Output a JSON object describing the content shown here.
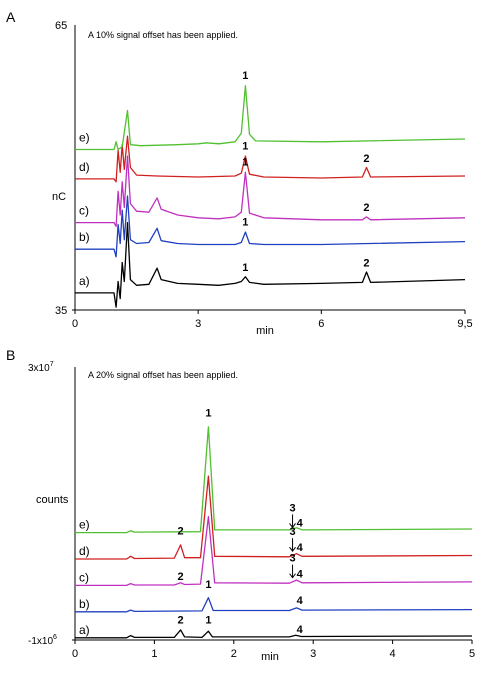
{
  "chart_data": [
    {
      "panel": "A",
      "type": "line",
      "note": "A 10% signal offset has been applied.",
      "ylabel": "nC",
      "xlabel": "min",
      "ylim": [
        35,
        65
      ],
      "xlim": [
        0,
        9.5
      ],
      "y_ticks": [
        "65",
        "35"
      ],
      "x_ticks": [
        {
          "value": 0,
          "label": "0"
        },
        {
          "value": 3,
          "label": "3"
        },
        {
          "value": 6,
          "label": "6"
        },
        {
          "value": 9.5,
          "label": "9,5"
        }
      ],
      "grid": false,
      "series": [
        {
          "name": "a)",
          "color": "#000000",
          "baseline": 36.8,
          "drift": 0.8,
          "points": [
            [
              0,
              36.8
            ],
            [
              0.95,
              36.8
            ],
            [
              1.0,
              35.3
            ],
            [
              1.05,
              38.0
            ],
            [
              1.1,
              36.2
            ],
            [
              1.15,
              40.0
            ],
            [
              1.2,
              38.0
            ],
            [
              1.28,
              44.2
            ],
            [
              1.35,
              38.2
            ],
            [
              1.5,
              37.6
            ],
            [
              1.8,
              37.7
            ],
            [
              2.0,
              39.4
            ],
            [
              2.1,
              38.2
            ],
            [
              2.5,
              37.8
            ],
            [
              3.0,
              37.7
            ],
            [
              3.5,
              37.6
            ],
            [
              3.9,
              37.8
            ],
            [
              4.05,
              38.0
            ],
            [
              4.15,
              38.5
            ],
            [
              4.25,
              37.9
            ],
            [
              4.6,
              37.7
            ],
            [
              6.0,
              37.8
            ],
            [
              7.0,
              37.9
            ],
            [
              7.1,
              39.0
            ],
            [
              7.2,
              37.9
            ],
            [
              9.5,
              38.2
            ]
          ]
        },
        {
          "name": "b)",
          "color": "#2040c0",
          "baseline": 41.2,
          "drift": 0.5,
          "points": [
            [
              0,
              41.4
            ],
            [
              0.95,
              41.4
            ],
            [
              1.0,
              40.6
            ],
            [
              1.05,
              44.0
            ],
            [
              1.1,
              42.0
            ],
            [
              1.15,
              45.5
            ],
            [
              1.2,
              42.4
            ],
            [
              1.28,
              47.0
            ],
            [
              1.35,
              42.4
            ],
            [
              1.5,
              42.0
            ],
            [
              1.8,
              42.1
            ],
            [
              2.0,
              43.6
            ],
            [
              2.1,
              42.3
            ],
            [
              2.5,
              42.0
            ],
            [
              3.0,
              41.9
            ],
            [
              3.5,
              41.9
            ],
            [
              3.9,
              41.9
            ],
            [
              4.05,
              42.1
            ],
            [
              4.15,
              43.2
            ],
            [
              4.25,
              42.0
            ],
            [
              4.6,
              41.9
            ],
            [
              6.0,
              41.9
            ],
            [
              9.5,
              42.2
            ]
          ]
        },
        {
          "name": "c)",
          "color": "#c030c0",
          "baseline": 43.8,
          "drift": 0.4,
          "points": [
            [
              0,
              44.2
            ],
            [
              0.95,
              44.2
            ],
            [
              1.0,
              43.8
            ],
            [
              1.05,
              47.5
            ],
            [
              1.1,
              45.0
            ],
            [
              1.15,
              48.5
            ],
            [
              1.2,
              45.8
            ],
            [
              1.28,
              51.2
            ],
            [
              1.35,
              46.2
            ],
            [
              1.5,
              45.4
            ],
            [
              1.8,
              45.3
            ],
            [
              2.0,
              46.8
            ],
            [
              2.1,
              45.6
            ],
            [
              2.5,
              45.0
            ],
            [
              3.0,
              44.7
            ],
            [
              3.5,
              44.6
            ],
            [
              3.9,
              44.8
            ],
            [
              4.05,
              45.3
            ],
            [
              4.15,
              49.5
            ],
            [
              4.25,
              45.2
            ],
            [
              4.6,
              44.7
            ],
            [
              6.0,
              44.5
            ],
            [
              7.0,
              44.5
            ],
            [
              7.1,
              44.8
            ],
            [
              7.2,
              44.5
            ],
            [
              9.5,
              44.7
            ]
          ]
        },
        {
          "name": "d)",
          "color": "#d02020",
          "baseline": 48.5,
          "drift": 0.3,
          "points": [
            [
              0,
              48.8
            ],
            [
              0.95,
              48.8
            ],
            [
              1.0,
              48.5
            ],
            [
              1.05,
              51.8
            ],
            [
              1.1,
              49.5
            ],
            [
              1.15,
              52.4
            ],
            [
              1.2,
              49.8
            ],
            [
              1.28,
              53.3
            ],
            [
              1.35,
              50.0
            ],
            [
              1.5,
              49.2
            ],
            [
              2.0,
              49.1
            ],
            [
              3.0,
              49.0
            ],
            [
              3.9,
              49.1
            ],
            [
              4.05,
              49.4
            ],
            [
              4.15,
              51.2
            ],
            [
              4.25,
              49.3
            ],
            [
              4.6,
              49.0
            ],
            [
              6.0,
              48.9
            ],
            [
              7.0,
              49.0
            ],
            [
              7.1,
              50.0
            ],
            [
              7.2,
              49.0
            ],
            [
              9.5,
              49.1
            ]
          ]
        },
        {
          "name": "e)",
          "color": "#50c030",
          "baseline": 51.8,
          "drift": 0.6,
          "points": [
            [
              0,
              51.9
            ],
            [
              0.95,
              51.9
            ],
            [
              1.0,
              52.7
            ],
            [
              1.05,
              51.9
            ],
            [
              1.15,
              52.2
            ],
            [
              1.28,
              56.0
            ],
            [
              1.35,
              52.4
            ],
            [
              1.6,
              52.3
            ],
            [
              2.5,
              52.4
            ],
            [
              3.0,
              52.5
            ],
            [
              3.2,
              52.6
            ],
            [
              3.5,
              52.5
            ],
            [
              3.9,
              52.7
            ],
            [
              4.05,
              53.6
            ],
            [
              4.15,
              58.6
            ],
            [
              4.25,
              53.5
            ],
            [
              4.4,
              52.8
            ],
            [
              6.0,
              52.7
            ],
            [
              9.5,
              53.0
            ]
          ]
        }
      ],
      "annotations": [
        {
          "label": "1",
          "x": 4.15,
          "y": 59.3
        },
        {
          "label": "1",
          "x": 4.15,
          "y": 51.9
        },
        {
          "label": "2",
          "x": 7.1,
          "y": 50.6
        },
        {
          "label": "1",
          "x": 4.15,
          "y": 50.2
        },
        {
          "label": "2",
          "x": 7.1,
          "y": 45.4
        },
        {
          "label": "1",
          "x": 4.15,
          "y": 43.9
        },
        {
          "label": "1",
          "x": 4.15,
          "y": 39.1
        },
        {
          "label": "2",
          "x": 7.1,
          "y": 39.6
        }
      ]
    },
    {
      "panel": "B",
      "type": "line",
      "note": "A 20% signal offset has been applied.",
      "ylabel": "counts",
      "xlabel": "min",
      "ylim": [
        -1000000,
        30000000
      ],
      "xlim": [
        0,
        5
      ],
      "y_ticks_math": [
        {
          "base": "3x10",
          "exp": "7",
          "value": 30000000
        },
        {
          "base": "-1x10",
          "exp": "6",
          "value": -1000000
        }
      ],
      "x_ticks": [
        {
          "value": 0,
          "label": "0"
        },
        {
          "value": 1,
          "label": "1"
        },
        {
          "value": 2,
          "label": "2"
        },
        {
          "value": 3,
          "label": "3"
        },
        {
          "value": 4,
          "label": "4"
        },
        {
          "value": 5,
          "label": "5"
        }
      ],
      "grid": false,
      "series": [
        {
          "name": "a)",
          "color": "#000000",
          "points": [
            [
              0,
              -0.75
            ],
            [
              0.65,
              -0.75
            ],
            [
              0.7,
              -0.5
            ],
            [
              0.75,
              -0.7
            ],
            [
              1.25,
              -0.7
            ],
            [
              1.33,
              0.15
            ],
            [
              1.38,
              -0.65
            ],
            [
              1.6,
              -0.7
            ],
            [
              1.68,
              0.0
            ],
            [
              1.73,
              -0.65
            ],
            [
              2.7,
              -0.65
            ],
            [
              2.78,
              -0.45
            ],
            [
              2.85,
              -0.6
            ],
            [
              5.0,
              -0.55
            ]
          ]
        },
        {
          "name": "b)",
          "color": "#2040c0",
          "points": [
            [
              0,
              2.2
            ],
            [
              0.65,
              2.2
            ],
            [
              0.7,
              2.4
            ],
            [
              0.75,
              2.25
            ],
            [
              1.6,
              2.3
            ],
            [
              1.68,
              3.8
            ],
            [
              1.74,
              2.35
            ],
            [
              2.7,
              2.35
            ],
            [
              2.79,
              2.65
            ],
            [
              2.86,
              2.4
            ],
            [
              5.0,
              2.45
            ]
          ]
        },
        {
          "name": "c)",
          "color": "#c030c0",
          "points": [
            [
              0,
              5.2
            ],
            [
              0.65,
              5.2
            ],
            [
              0.7,
              5.4
            ],
            [
              0.75,
              5.25
            ],
            [
              1.25,
              5.25
            ],
            [
              1.33,
              5.5
            ],
            [
              1.38,
              5.3
            ],
            [
              1.58,
              5.35
            ],
            [
              1.68,
              13.0
            ],
            [
              1.76,
              5.5
            ],
            [
              2.7,
              5.45
            ],
            [
              2.79,
              5.8
            ],
            [
              2.86,
              5.5
            ],
            [
              5.0,
              5.6
            ]
          ]
        },
        {
          "name": "d)",
          "color": "#d02020",
          "points": [
            [
              0,
              8.2
            ],
            [
              0.65,
              8.2
            ],
            [
              0.7,
              8.5
            ],
            [
              0.75,
              8.25
            ],
            [
              1.25,
              8.3
            ],
            [
              1.33,
              9.8
            ],
            [
              1.38,
              8.35
            ],
            [
              1.58,
              8.35
            ],
            [
              1.68,
              17.6
            ],
            [
              1.76,
              8.5
            ],
            [
              2.7,
              8.45
            ],
            [
              2.79,
              8.8
            ],
            [
              2.86,
              8.5
            ],
            [
              5.0,
              8.6
            ]
          ]
        },
        {
          "name": "e)",
          "color": "#50c030",
          "points": [
            [
              0,
              11.2
            ],
            [
              0.65,
              11.2
            ],
            [
              0.7,
              11.4
            ],
            [
              0.75,
              11.25
            ],
            [
              1.58,
              11.3
            ],
            [
              1.68,
              23.2
            ],
            [
              1.76,
              11.5
            ],
            [
              2.7,
              11.5
            ],
            [
              2.79,
              11.75
            ],
            [
              2.86,
              11.5
            ],
            [
              5.0,
              11.6
            ]
          ]
        }
      ],
      "annotations": [
        {
          "label": "1",
          "x": 1.68,
          "y": 24.4,
          "arrow": false
        },
        {
          "label": "3",
          "x": 2.74,
          "y": 13.6,
          "arrow": true
        },
        {
          "label": "4",
          "x": 2.83,
          "y": 11.9,
          "arrow": false
        },
        {
          "label": "2",
          "x": 1.33,
          "y": 11.0,
          "arrow": false
        },
        {
          "label": "3",
          "x": 2.74,
          "y": 10.9,
          "arrow": true
        },
        {
          "label": "4",
          "x": 2.83,
          "y": 9.1,
          "arrow": false
        },
        {
          "label": "2",
          "x": 1.33,
          "y": 5.8,
          "arrow": false
        },
        {
          "label": "3",
          "x": 2.74,
          "y": 7.9,
          "arrow": true
        },
        {
          "label": "4",
          "x": 2.83,
          "y": 6.1,
          "arrow": false
        },
        {
          "label": "1",
          "x": 1.68,
          "y": 4.9,
          "arrow": false
        },
        {
          "label": "4",
          "x": 2.83,
          "y": 3.1,
          "arrow": false
        },
        {
          "label": "2",
          "x": 1.33,
          "y": 0.9,
          "arrow": false
        },
        {
          "label": "1",
          "x": 1.68,
          "y": 0.9,
          "arrow": false
        },
        {
          "label": "4",
          "x": 2.83,
          "y": -0.2,
          "arrow": false
        }
      ]
    }
  ]
}
